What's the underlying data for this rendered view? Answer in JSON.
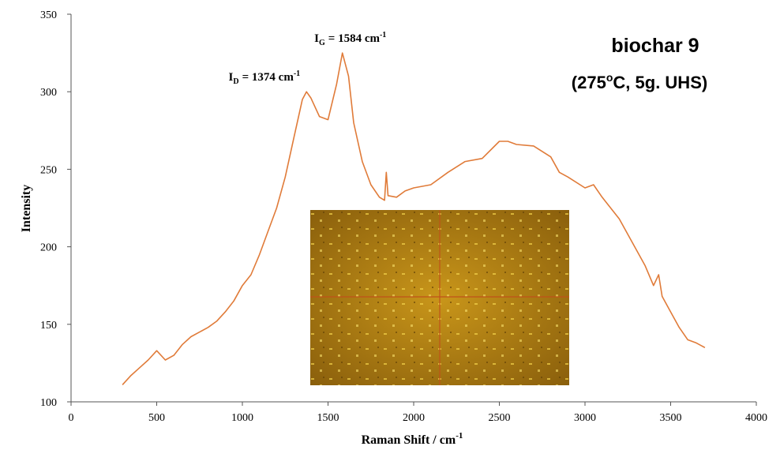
{
  "chart_data": {
    "type": "line",
    "title": "biochar 9",
    "subtitle": {
      "before": "(275",
      "sup": "o",
      "after": "C, 5g. UHS)"
    },
    "x_label": {
      "text": "Raman Shift / cm",
      "sup": "-1"
    },
    "y_label": "Intensity",
    "annotations": [
      {
        "main": "I",
        "sub": "D",
        "text": "= 1374 cm",
        "sup": "-1",
        "x": 1374,
        "y": 300
      },
      {
        "main": "I",
        "sub": "G",
        "text": "= 1584 cm",
        "sup": "-1",
        "x": 1584,
        "y": 325
      }
    ],
    "x": [
      300,
      350,
      400,
      450,
      500,
      550,
      600,
      650,
      700,
      750,
      800,
      850,
      900,
      950,
      1000,
      1050,
      1100,
      1150,
      1200,
      1250,
      1300,
      1350,
      1374,
      1400,
      1450,
      1500,
      1550,
      1584,
      1620,
      1650,
      1700,
      1750,
      1800,
      1830,
      1840,
      1850,
      1900,
      1950,
      2000,
      2100,
      2200,
      2300,
      2400,
      2500,
      2550,
      2600,
      2700,
      2800,
      2850,
      2900,
      3000,
      3050,
      3100,
      3200,
      3300,
      3350,
      3400,
      3430,
      3450,
      3500,
      3550,
      3600,
      3650,
      3700
    ],
    "series": [
      {
        "color": "#e07b39",
        "values": [
          111,
          117,
          122,
          127,
          133,
          127,
          130,
          137,
          142,
          145,
          148,
          152,
          158,
          165,
          175,
          182,
          195,
          210,
          225,
          245,
          270,
          295,
          300,
          296,
          284,
          282,
          305,
          325,
          310,
          280,
          255,
          240,
          232,
          230,
          248,
          233,
          232,
          236,
          238,
          240,
          248,
          255,
          257,
          268,
          268,
          266,
          265,
          258,
          248,
          245,
          238,
          240,
          232,
          218,
          198,
          188,
          175,
          182,
          168,
          158,
          148,
          140,
          138,
          135
        ]
      }
    ],
    "xlim": [
      0,
      4000
    ],
    "ylim": [
      100,
      350
    ],
    "xticks": [
      0,
      500,
      1000,
      1500,
      2000,
      2500,
      3000,
      3500,
      4000
    ],
    "yticks": [
      100,
      150,
      200,
      250,
      300,
      350
    ]
  }
}
